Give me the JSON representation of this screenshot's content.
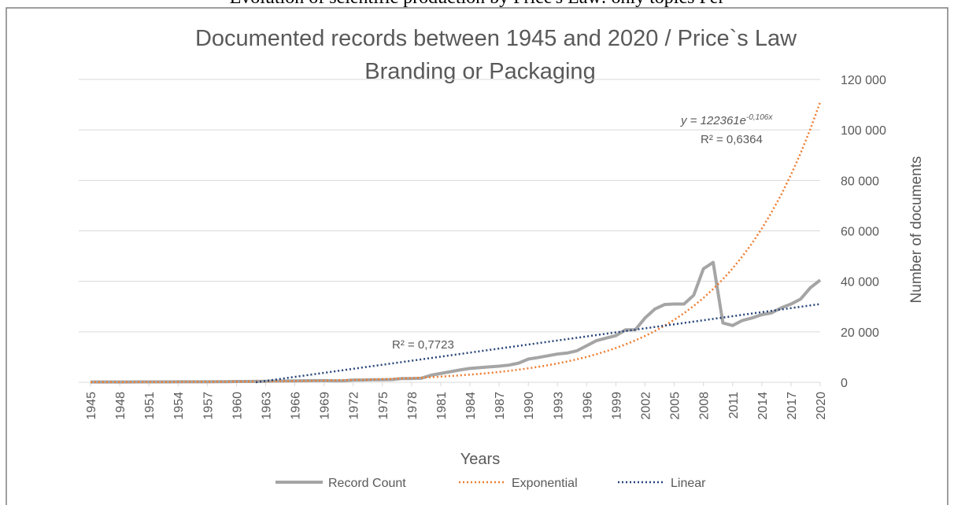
{
  "caption": "Evolution of scientific production by Price's Law: only topics Per",
  "chart_data": {
    "type": "line",
    "title": [
      "Documented  records between 1945 and 2020 / Price`s Law",
      "Branding or Packaging"
    ],
    "x_label": "Years",
    "y_label": "Number of documents",
    "x": [
      1945,
      1946,
      1947,
      1948,
      1949,
      1950,
      1951,
      1952,
      1953,
      1954,
      1955,
      1956,
      1957,
      1958,
      1959,
      1960,
      1961,
      1962,
      1963,
      1964,
      1965,
      1966,
      1967,
      1968,
      1969,
      1970,
      1971,
      1972,
      1973,
      1974,
      1975,
      1976,
      1977,
      1978,
      1979,
      1980,
      1981,
      1982,
      1983,
      1984,
      1985,
      1986,
      1987,
      1988,
      1989,
      1990,
      1991,
      1992,
      1993,
      1994,
      1995,
      1996,
      1997,
      1998,
      1999,
      2000,
      2001,
      2002,
      2003,
      2004,
      2005,
      2006,
      2007,
      2008,
      2009,
      2010,
      2011,
      2012,
      2013,
      2014,
      2015,
      2016,
      2017,
      2018,
      2019,
      2020
    ],
    "series": [
      {
        "name": "Record Count",
        "color": "#a5a5a5",
        "style": "solid",
        "values": [
          100,
          100,
          100,
          100,
          100,
          150,
          150,
          150,
          150,
          200,
          200,
          200,
          200,
          250,
          250,
          300,
          300,
          350,
          400,
          450,
          500,
          550,
          600,
          650,
          650,
          600,
          600,
          900,
          900,
          1000,
          1000,
          1100,
          1500,
          1500,
          1600,
          2800,
          3500,
          4200,
          4900,
          5500,
          5800,
          6100,
          6400,
          6800,
          7600,
          9200,
          9800,
          10500,
          11200,
          11600,
          12500,
          14500,
          16500,
          17500,
          18500,
          20800,
          20800,
          25500,
          29000,
          30800,
          31000,
          31000,
          34500,
          45000,
          47500,
          23500,
          22500,
          24500,
          25500,
          26800,
          27500,
          29500,
          31000,
          33000,
          37500,
          40500
        ]
      },
      {
        "name": "Exponential",
        "color": "#ed7d31",
        "style": "dotted",
        "values": [
          60,
          65,
          75,
          80,
          90,
          100,
          110,
          125,
          135,
          150,
          165,
          185,
          200,
          225,
          250,
          275,
          305,
          335,
          370,
          410,
          455,
          500,
          555,
          610,
          675,
          750,
          825,
          915,
          1010,
          1115,
          1235,
          1365,
          1505,
          1665,
          1840,
          2035,
          2245,
          2485,
          2745,
          3035,
          3350,
          3705,
          4095,
          4525,
          5000,
          5525,
          6110,
          6750,
          7460,
          8245,
          9110,
          10070,
          11130,
          12300,
          13590,
          15020,
          16600,
          18350,
          20280,
          22410,
          24770,
          27370,
          30250,
          33430,
          36950,
          40835,
          45130,
          49875,
          55120,
          60920,
          67325,
          74410,
          82230,
          90880,
          100437,
          111000
        ]
      },
      {
        "name": "Linear",
        "color": "#264478",
        "style": "dotted",
        "x": [
          1962,
          2020
        ],
        "values": [
          0,
          31000
        ]
      }
    ],
    "xlim": [
      1945,
      2020
    ],
    "xticks": [
      1945,
      1948,
      1951,
      1954,
      1957,
      1960,
      1963,
      1966,
      1969,
      1972,
      1975,
      1978,
      1981,
      1984,
      1987,
      1990,
      1993,
      1996,
      1999,
      2002,
      2005,
      2008,
      2011,
      2014,
      2017,
      2020
    ],
    "ylim": [
      0,
      120000
    ],
    "yticks": [
      0,
      {
        "value": 20000,
        "label": "20 000"
      },
      {
        "value": 40000,
        "label": "40 000"
      },
      {
        "value": 60000,
        "label": "60 000"
      },
      {
        "value": 80000,
        "label": "80 000"
      },
      {
        "value": 100000,
        "label": "100 000"
      },
      {
        "value": 120000,
        "label": "120 000"
      }
    ],
    "grid": true,
    "legend": "bottom",
    "annotations": {
      "exp_equation": "y = 122361e",
      "exp_exponent": "-0,106x",
      "exp_r2": "R² = 0,6364",
      "lin_r2": "R² = 0,7723"
    }
  }
}
